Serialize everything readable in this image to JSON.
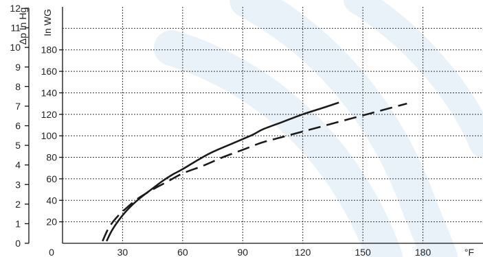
{
  "chart_data": {
    "type": "line",
    "xlabel": "°F",
    "x_ticks": [
      0,
      30,
      60,
      90,
      120,
      150,
      180
    ],
    "xlim": [
      0,
      210
    ],
    "left_axis": {
      "label": "Δp In Hg",
      "ticks": [
        0,
        1,
        2,
        3,
        4,
        5,
        6,
        7,
        8,
        9,
        10,
        11,
        12
      ],
      "ylim": [
        0,
        12
      ]
    },
    "right_axis": {
      "label": "In WG",
      "ticks": [
        20,
        40,
        60,
        80,
        100,
        120,
        140,
        160,
        180
      ],
      "ylim": [
        0,
        220
      ]
    },
    "grid": true,
    "series": [
      {
        "style": "solid",
        "x": [
          22,
          25,
          30,
          35,
          40,
          45,
          50,
          55,
          60,
          68,
          75,
          85,
          95,
          100,
          110,
          120,
          130,
          138
        ],
        "y": [
          2,
          13,
          26,
          36,
          44,
          51,
          58,
          64,
          69,
          78,
          85,
          93,
          101,
          106,
          113,
          120,
          126,
          131
        ]
      },
      {
        "style": "dashed",
        "x": [
          20,
          23,
          27,
          32,
          38,
          45,
          52,
          60,
          70,
          80,
          90,
          100,
          110,
          120,
          130,
          140,
          150,
          160,
          172
        ],
        "y": [
          2,
          14,
          24,
          33,
          42,
          50,
          57,
          65,
          72,
          80,
          87,
          94,
          99,
          104,
          109,
          114,
          119,
          124,
          130
        ]
      }
    ]
  }
}
